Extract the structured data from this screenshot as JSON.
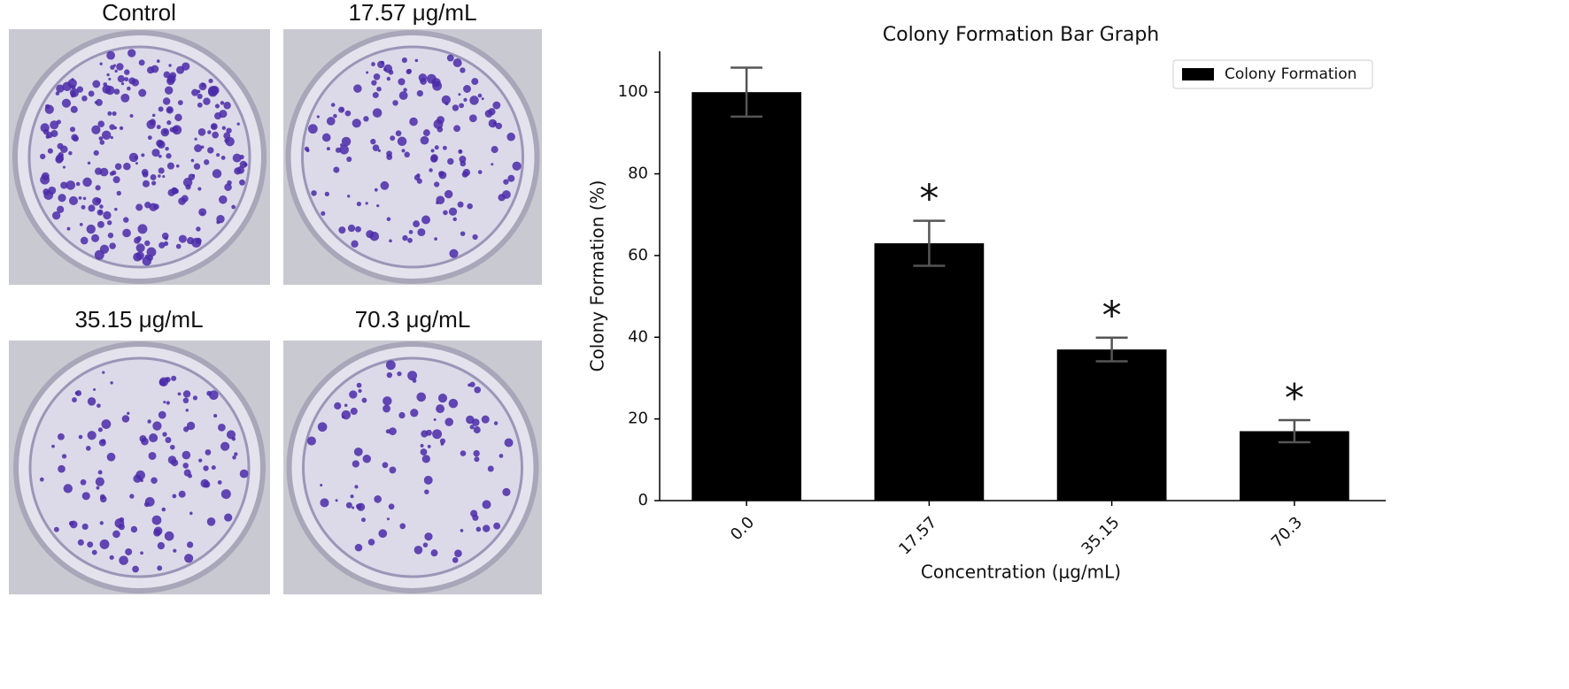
{
  "panels": {
    "labels": [
      "Control",
      "17.57 μg/mL",
      "35.15 μg/mL",
      "70.3 μg/mL"
    ]
  },
  "chart_data": {
    "type": "bar",
    "title": "Colony Formation Bar Graph",
    "x_label": "Concentration (μg/mL)",
    "y_label": "Colony Formation (%)",
    "categories": [
      "0.0",
      "17.57",
      "35.15",
      "70.3"
    ],
    "series": [
      {
        "name": "Colony Formation",
        "color": "#000000",
        "values": [
          100,
          63,
          37,
          17
        ],
        "errors": [
          6,
          5.5,
          2.9,
          2.7
        ]
      }
    ],
    "significance": [
      null,
      "*",
      "*",
      "*"
    ],
    "ylim": [
      0,
      110
    ],
    "yticks": [
      0,
      20,
      40,
      60,
      80,
      100
    ],
    "grid": false,
    "legend": "upper right",
    "error_color": "#555555"
  }
}
